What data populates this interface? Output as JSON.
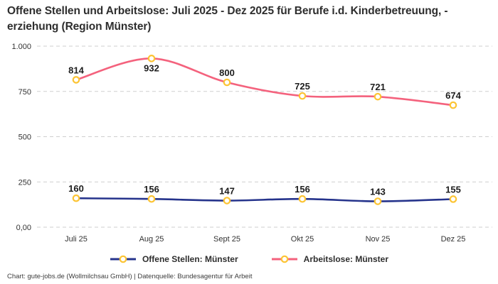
{
  "title": "Offene Stellen und Arbeitslose: Juli 2025 - Dez 2025 für Berufe i.d. Kinderbetreuung, -erziehung (Region Münster)",
  "footer": "Chart: gute-jobs.de (Wollmilchsau GmbH) | Datenquelle: Bundesagentur für Arbeit",
  "chart_data": {
    "type": "line",
    "categories": [
      "Juli 25",
      "Aug 25",
      "Sept 25",
      "Okt 25",
      "Nov 25",
      "Dez 25"
    ],
    "series": [
      {
        "name": "Offene Stellen: Münster",
        "values": [
          160,
          156,
          147,
          156,
          143,
          155
        ],
        "color": "#26348c"
      },
      {
        "name": "Arbeitslose: Münster",
        "values": [
          814,
          932,
          800,
          725,
          721,
          674
        ],
        "color": "#f4627d"
      }
    ],
    "marker": {
      "fill": "#ffffff",
      "stroke": "#fcc434"
    },
    "ylim": [
      0,
      1000
    ],
    "yticks": [
      {
        "value": 0,
        "label": "0,00"
      },
      {
        "value": 250,
        "label": "250"
      },
      {
        "value": 500,
        "label": "500"
      },
      {
        "value": 750,
        "label": "750"
      },
      {
        "value": 1000,
        "label": "1.000"
      }
    ],
    "grid": {
      "horizontal": true,
      "style": "dashed",
      "color": "#cfcfcf"
    },
    "legend_position": "bottom",
    "data_labels": true
  }
}
